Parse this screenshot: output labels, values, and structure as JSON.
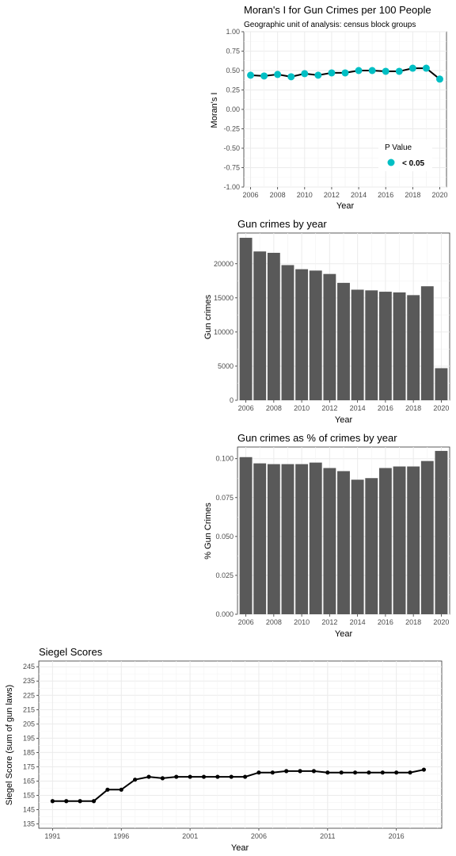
{
  "chart_data": [
    {
      "type": "line",
      "title": "Moran's I for Gun Crimes per 100 People",
      "subtitle": "Geographic unit of analysis: census block groups",
      "xlabel": "Year",
      "ylabel": "Moran's I",
      "ylim": [
        -1.0,
        1.0
      ],
      "yticks": [
        "1.00",
        "0.75",
        "0.50",
        "0.25",
        "0.00",
        "-0.25",
        "-0.50",
        "-0.75",
        "-1.00"
      ],
      "xlim": [
        2005.5,
        2020.5
      ],
      "xticks": [
        "2006",
        "2008",
        "2010",
        "2012",
        "2014",
        "2016",
        "2018",
        "2020"
      ],
      "grid": true,
      "legend": {
        "title": "P Value",
        "items": [
          "< 0.05"
        ],
        "placement": "bottom-right"
      },
      "x": [
        2006,
        2007,
        2008,
        2009,
        2010,
        2011,
        2012,
        2013,
        2014,
        2015,
        2016,
        2017,
        2018,
        2019,
        2020
      ],
      "series": [
        {
          "values": [
            0.44,
            0.43,
            0.45,
            0.42,
            0.46,
            0.44,
            0.47,
            0.47,
            0.5,
            0.5,
            0.49,
            0.49,
            0.53,
            0.53,
            0.39
          ]
        }
      ],
      "colors": {
        "point": "#00bfc4",
        "line": "#000000"
      }
    },
    {
      "type": "bar",
      "title": "Gun crimes by year",
      "xlabel": "Year",
      "ylabel": "Gun crimes",
      "ylim": [
        0,
        24500
      ],
      "yticks": [
        "0",
        "5000",
        "10000",
        "15000",
        "20000"
      ],
      "xticks": [
        "2006",
        "2008",
        "2010",
        "2012",
        "2014",
        "2016",
        "2018",
        "2020"
      ],
      "grid": true,
      "x": [
        2006,
        2007,
        2008,
        2009,
        2010,
        2011,
        2012,
        2013,
        2014,
        2015,
        2016,
        2017,
        2018,
        2019,
        2020
      ],
      "values": [
        23800,
        21800,
        21600,
        19800,
        19200,
        19000,
        18500,
        17200,
        16200,
        16100,
        15900,
        15800,
        15400,
        16700,
        4700
      ],
      "colors": {
        "bar": "#595959"
      }
    },
    {
      "type": "bar",
      "title": "Gun crimes as % of crimes by year",
      "xlabel": "Year",
      "ylabel": "% Gun Crimes",
      "ylim": [
        0,
        0.1075
      ],
      "yticks": [
        "0.000",
        "0.025",
        "0.050",
        "0.075",
        "0.100"
      ],
      "xticks": [
        "2006",
        "2008",
        "2010",
        "2012",
        "2014",
        "2016",
        "2018",
        "2020"
      ],
      "grid": true,
      "x": [
        2006,
        2007,
        2008,
        2009,
        2010,
        2011,
        2012,
        2013,
        2014,
        2015,
        2016,
        2017,
        2018,
        2019,
        2020
      ],
      "values": [
        0.101,
        0.097,
        0.0965,
        0.0965,
        0.0965,
        0.0975,
        0.094,
        0.092,
        0.0865,
        0.0875,
        0.094,
        0.095,
        0.095,
        0.0985,
        0.105
      ],
      "colors": {
        "bar": "#595959"
      }
    },
    {
      "type": "line",
      "title": "Siegel Scores",
      "xlabel": "Year",
      "ylabel": "Siegel Score (sum of gun laws)",
      "ylim": [
        132,
        249
      ],
      "yticks": [
        "245",
        "235",
        "225",
        "215",
        "205",
        "195",
        "185",
        "175",
        "165",
        "155",
        "145",
        "135"
      ],
      "xlim": [
        1990.0,
        2019.3
      ],
      "xticks": [
        "1991",
        "1996",
        "2001",
        "2006",
        "2011",
        "2016"
      ],
      "grid": true,
      "x": [
        1991,
        1992,
        1993,
        1994,
        1995,
        1996,
        1997,
        1998,
        1999,
        2000,
        2001,
        2002,
        2003,
        2004,
        2005,
        2006,
        2007,
        2008,
        2009,
        2010,
        2011,
        2012,
        2013,
        2014,
        2015,
        2016,
        2017,
        2018
      ],
      "series": [
        {
          "values": [
            151,
            151,
            151,
            151,
            159,
            159,
            166,
            168,
            167,
            168,
            168,
            168,
            168,
            168,
            168,
            171,
            171,
            172,
            172,
            172,
            171,
            171,
            171,
            171,
            171,
            171,
            171,
            173
          ]
        }
      ],
      "colors": {
        "point": "#000000",
        "line": "#000000"
      }
    }
  ]
}
